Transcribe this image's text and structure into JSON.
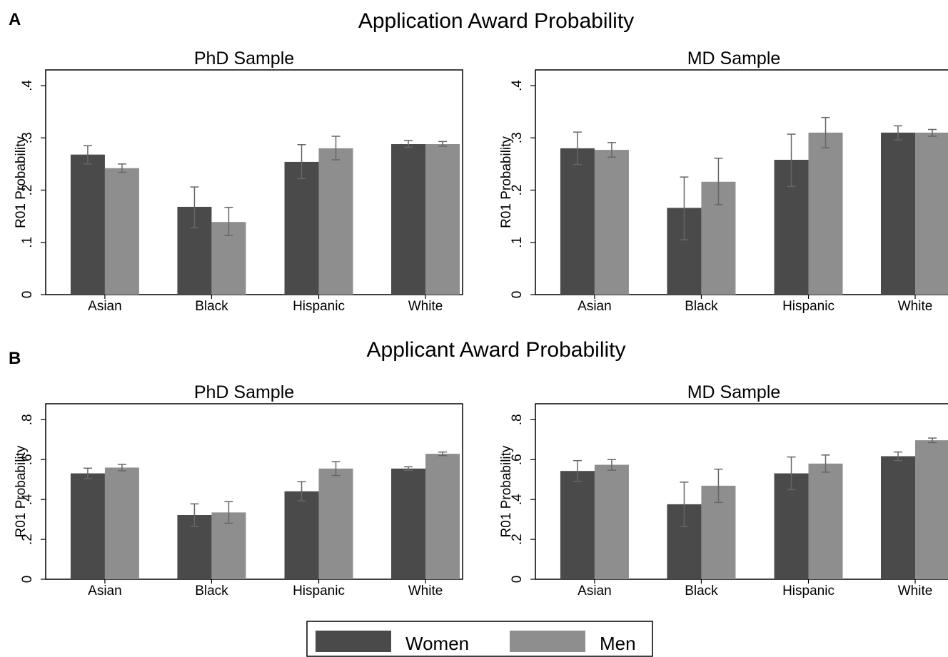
{
  "figure": {
    "panel_labels": [
      "A",
      "B"
    ],
    "section_titles": [
      "Application Award Probability",
      "Applicant Award Probability"
    ]
  },
  "colors": {
    "women": "#4a4a4a",
    "men": "#8e8e8e",
    "error_bar": "#666666",
    "axis": "#000000"
  },
  "legend": {
    "items": [
      {
        "label": "Women",
        "color_key": "women"
      },
      {
        "label": "Men",
        "color_key": "men"
      }
    ]
  },
  "chart_data": [
    {
      "type": "bar",
      "section": "A",
      "title": "PhD Sample",
      "ylabel": "R01 Probability",
      "xlabel": "",
      "categories": [
        "Asian",
        "Black",
        "Hispanic",
        "White"
      ],
      "ylim": [
        0,
        0.43
      ],
      "yticks": [
        0,
        0.1,
        0.2,
        0.3,
        0.4
      ],
      "ytick_labels": [
        "0",
        ".1",
        ".2",
        ".3",
        ".4"
      ],
      "grid": false,
      "series": [
        {
          "name": "Women",
          "values": [
            0.268,
            0.168,
            0.254,
            0.288
          ],
          "ci_low": [
            0.25,
            0.128,
            0.222,
            0.282
          ],
          "ci_high": [
            0.285,
            0.206,
            0.287,
            0.295
          ]
        },
        {
          "name": "Men",
          "values": [
            0.242,
            0.139,
            0.28,
            0.288
          ],
          "ci_low": [
            0.234,
            0.113,
            0.258,
            0.284
          ],
          "ci_high": [
            0.25,
            0.167,
            0.303,
            0.293
          ]
        }
      ]
    },
    {
      "type": "bar",
      "section": "A",
      "title": "MD Sample",
      "ylabel": "R01 Probability",
      "xlabel": "",
      "categories": [
        "Asian",
        "Black",
        "Hispanic",
        "White"
      ],
      "ylim": [
        0,
        0.43
      ],
      "yticks": [
        0,
        0.1,
        0.2,
        0.3,
        0.4
      ],
      "ytick_labels": [
        "0",
        ".1",
        ".2",
        ".3",
        ".4"
      ],
      "grid": false,
      "series": [
        {
          "name": "Women",
          "values": [
            0.28,
            0.166,
            0.258,
            0.31
          ],
          "ci_low": [
            0.249,
            0.105,
            0.207,
            0.296
          ],
          "ci_high": [
            0.311,
            0.225,
            0.307,
            0.323
          ]
        },
        {
          "name": "Men",
          "values": [
            0.277,
            0.216,
            0.31,
            0.31
          ],
          "ci_low": [
            0.263,
            0.172,
            0.281,
            0.303
          ],
          "ci_high": [
            0.291,
            0.261,
            0.339,
            0.316
          ]
        }
      ]
    },
    {
      "type": "bar",
      "section": "B",
      "title": "PhD Sample",
      "ylabel": "R01 Probability",
      "xlabel": "",
      "categories": [
        "Asian",
        "Black",
        "Hispanic",
        "White"
      ],
      "ylim": [
        0,
        0.88
      ],
      "yticks": [
        0,
        0.2,
        0.4,
        0.6,
        0.8
      ],
      "ytick_labels": [
        "0",
        ".2",
        ".4",
        ".6",
        ".8"
      ],
      "grid": false,
      "series": [
        {
          "name": "Women",
          "values": [
            0.531,
            0.322,
            0.441,
            0.555
          ],
          "ci_low": [
            0.505,
            0.265,
            0.393,
            0.546
          ],
          "ci_high": [
            0.557,
            0.378,
            0.489,
            0.564
          ]
        },
        {
          "name": "Men",
          "values": [
            0.56,
            0.335,
            0.555,
            0.629
          ],
          "ci_low": [
            0.544,
            0.281,
            0.52,
            0.62
          ],
          "ci_high": [
            0.576,
            0.389,
            0.59,
            0.638
          ]
        }
      ]
    },
    {
      "type": "bar",
      "section": "B",
      "title": "MD Sample",
      "ylabel": "R01 Probability",
      "xlabel": "",
      "categories": [
        "Asian",
        "Black",
        "Hispanic",
        "White"
      ],
      "ylim": [
        0,
        0.88
      ],
      "yticks": [
        0,
        0.2,
        0.4,
        0.6,
        0.8
      ],
      "ytick_labels": [
        "0",
        ".2",
        ".4",
        ".6",
        ".8"
      ],
      "grid": false,
      "series": [
        {
          "name": "Women",
          "values": [
            0.543,
            0.376,
            0.531,
            0.617
          ],
          "ci_low": [
            0.491,
            0.264,
            0.449,
            0.595
          ],
          "ci_high": [
            0.595,
            0.487,
            0.613,
            0.638
          ]
        },
        {
          "name": "Men",
          "values": [
            0.574,
            0.469,
            0.58,
            0.697
          ],
          "ci_low": [
            0.547,
            0.385,
            0.537,
            0.685
          ],
          "ci_high": [
            0.6,
            0.552,
            0.623,
            0.708
          ]
        }
      ]
    }
  ]
}
